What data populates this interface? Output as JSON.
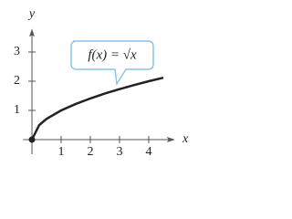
{
  "chart_data": {
    "type": "line",
    "x": [
      0,
      0.25,
      0.5,
      1,
      1.5,
      2,
      2.5,
      3,
      3.5,
      4,
      4.5
    ],
    "series": [
      {
        "name": null,
        "color": "#222222",
        "values": [
          0,
          0.5,
          0.71,
          1,
          1.22,
          1.41,
          1.58,
          1.73,
          1.87,
          2,
          2.12
        ]
      }
    ],
    "xlabel": "x",
    "ylabel": "y",
    "annotation": "f(x) = √x",
    "xlim": [
      -0.3,
      4.9
    ],
    "ylim": [
      -0.5,
      3.8
    ],
    "xticks": [
      1,
      2,
      3,
      4
    ],
    "yticks": [
      1,
      2,
      3
    ]
  }
}
